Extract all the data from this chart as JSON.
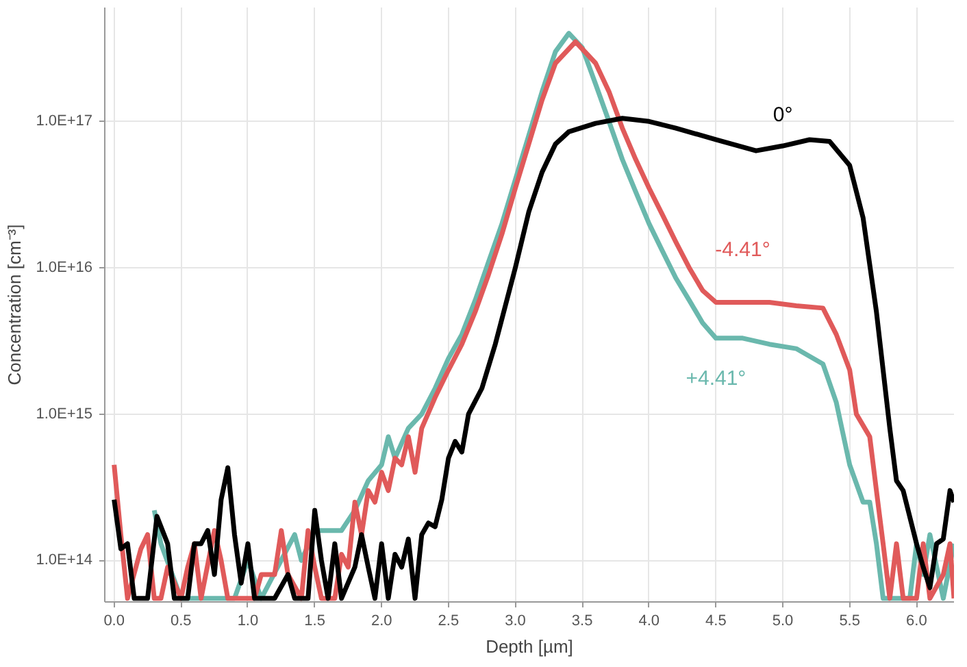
{
  "chart_data": {
    "type": "line",
    "xlabel": "Depth [µm]",
    "ylabel": "Concentration [cm⁻³]",
    "log": "y",
    "grid": true,
    "legend": false,
    "marker": "none",
    "line_style": "solid",
    "xlim": [
      -0.07,
      6.28
    ],
    "ylim": [
      52000000000000.0,
      6e+17
    ],
    "xticks": [
      {
        "value": 0,
        "label": "0.0"
      },
      0.5,
      {
        "value": 1,
        "label": "1.0"
      },
      1.5,
      {
        "value": 2,
        "label": "2.0"
      },
      2.5,
      {
        "value": 3,
        "label": "3.0"
      },
      3.5,
      {
        "value": 4,
        "label": "4.0"
      },
      4.5,
      {
        "value": 5,
        "label": "5.0"
      },
      5.5,
      {
        "value": 6,
        "label": "6.0"
      }
    ],
    "yticks": [
      {
        "value": 100000000000000.0,
        "label": "1.0E+14"
      },
      {
        "value": 1000000000000000.0,
        "label": "1.0E+15"
      },
      {
        "value": 1e+16,
        "label": "1.0E+16"
      },
      {
        "value": 1e+17,
        "label": "1.0E+17"
      }
    ],
    "series": [
      {
        "name": "+4.41°",
        "color": "#6ab8ad",
        "x": [
          0.3,
          0.35,
          0.5,
          0.9,
          1.0,
          1.1,
          1.35,
          1.4,
          1.5,
          1.6,
          1.7,
          1.8,
          1.9,
          2.0,
          2.05,
          2.1,
          2.2,
          2.3,
          2.4,
          2.5,
          2.6,
          2.7,
          2.8,
          2.9,
          3.0,
          3.1,
          3.2,
          3.3,
          3.4,
          3.5,
          3.6,
          3.7,
          3.8,
          3.9,
          4.0,
          4.1,
          4.2,
          4.3,
          4.4,
          4.5,
          4.7,
          4.9,
          5.1,
          5.3,
          5.4,
          5.5,
          5.6,
          5.65,
          5.7,
          5.75,
          5.95,
          6.0,
          6.05,
          6.1,
          6.2,
          6.28
        ],
        "values": [
          220000000000000.0,
          130000000000000.0,
          55000000000000.0,
          55000000000000.0,
          100000000000000.0,
          55000000000000.0,
          150000000000000.0,
          100000000000000.0,
          160000000000000.0,
          160000000000000.0,
          160000000000000.0,
          220000000000000.0,
          350000000000000.0,
          450000000000000.0,
          700000000000000.0,
          500000000000000.0,
          800000000000000.0,
          1000000000000000.0,
          1500000000000000.0,
          2400000000000000.0,
          3500000000000000.0,
          6000000000000000.0,
          1.1e+16,
          2e+16,
          4e+16,
          8e+16,
          1.6e+17,
          3e+17,
          4e+17,
          3.2e+17,
          1.8e+17,
          1e+17,
          5.5e+16,
          3.3e+16,
          2e+16,
          1.3e+16,
          8500000000000000.0,
          6000000000000000.0,
          4200000000000000.0,
          3300000000000000.0,
          3300000000000000.0,
          3000000000000000.0,
          2800000000000000.0,
          2200000000000000.0,
          1200000000000000.0,
          450000000000000.0,
          250000000000000.0,
          250000000000000.0,
          130000000000000.0,
          55000000000000.0,
          55000000000000.0,
          130000000000000.0,
          80000000000000.0,
          150000000000000.0,
          55000000000000.0,
          130000000000000.0
        ]
      },
      {
        "name": "-4.41°",
        "color": "#e05a5a",
        "x": [
          0.0,
          0.05,
          0.1,
          0.2,
          0.25,
          0.3,
          0.35,
          0.4,
          0.5,
          0.55,
          0.6,
          0.65,
          0.75,
          0.8,
          0.85,
          0.95,
          1.05,
          1.1,
          1.2,
          1.25,
          1.3,
          1.4,
          1.45,
          1.5,
          1.55,
          1.65,
          1.7,
          1.75,
          1.8,
          1.85,
          1.9,
          1.95,
          2.0,
          2.05,
          2.1,
          2.15,
          2.2,
          2.25,
          2.3,
          2.4,
          2.5,
          2.6,
          2.7,
          2.8,
          2.9,
          3.0,
          3.1,
          3.2,
          3.3,
          3.45,
          3.6,
          3.7,
          3.8,
          3.9,
          4.0,
          4.1,
          4.2,
          4.3,
          4.4,
          4.5,
          4.7,
          4.9,
          5.1,
          5.3,
          5.4,
          5.5,
          5.55,
          5.65,
          5.7,
          5.75,
          5.8,
          5.85,
          5.9,
          6.0,
          6.05,
          6.1,
          6.2,
          6.25,
          6.28
        ],
        "values": [
          450000000000000.0,
          150000000000000.0,
          55000000000000.0,
          120000000000000.0,
          150000000000000.0,
          55000000000000.0,
          55000000000000.0,
          90000000000000.0,
          55000000000000.0,
          90000000000000.0,
          130000000000000.0,
          55000000000000.0,
          160000000000000.0,
          100000000000000.0,
          55000000000000.0,
          55000000000000.0,
          55000000000000.0,
          80000000000000.0,
          80000000000000.0,
          160000000000000.0,
          80000000000000.0,
          55000000000000.0,
          160000000000000.0,
          90000000000000.0,
          55000000000000.0,
          55000000000000.0,
          110000000000000.0,
          90000000000000.0,
          250000000000000.0,
          150000000000000.0,
          300000000000000.0,
          250000000000000.0,
          400000000000000.0,
          300000000000000.0,
          500000000000000.0,
          450000000000000.0,
          700000000000000.0,
          400000000000000.0,
          800000000000000.0,
          1300000000000000.0,
          2000000000000000.0,
          3000000000000000.0,
          5000000000000000.0,
          9000000000000000.0,
          1.7e+16,
          3.5e+16,
          7e+16,
          1.4e+17,
          2.5e+17,
          3.5e+17,
          2.5e+17,
          1.6e+17,
          9e+16,
          5.5e+16,
          3.5e+16,
          2.3e+16,
          1.5e+16,
          1e+16,
          7000000000000000.0,
          5800000000000000.0,
          5800000000000000.0,
          5800000000000000.0,
          5500000000000000.0,
          5300000000000000.0,
          3500000000000000.0,
          2000000000000000.0,
          1000000000000000.0,
          700000000000000.0,
          300000000000000.0,
          130000000000000.0,
          55000000000000.0,
          130000000000000.0,
          55000000000000.0,
          55000000000000.0,
          130000000000000.0,
          55000000000000.0,
          80000000000000.0,
          130000000000000.0,
          55000000000000.0
        ]
      },
      {
        "name": "0°",
        "color": "#000000",
        "x": [
          0.0,
          0.05,
          0.1,
          0.15,
          0.25,
          0.32,
          0.4,
          0.45,
          0.55,
          0.6,
          0.65,
          0.7,
          0.75,
          0.8,
          0.85,
          0.9,
          0.95,
          1.0,
          1.05,
          1.2,
          1.3,
          1.35,
          1.45,
          1.5,
          1.55,
          1.6,
          1.65,
          1.7,
          1.8,
          1.85,
          1.9,
          1.95,
          2.0,
          2.05,
          2.1,
          2.15,
          2.2,
          2.25,
          2.3,
          2.35,
          2.4,
          2.45,
          2.5,
          2.55,
          2.6,
          2.65,
          2.75,
          2.85,
          3.0,
          3.1,
          3.2,
          3.3,
          3.4,
          3.6,
          3.8,
          4.0,
          4.2,
          4.5,
          4.8,
          5.0,
          5.2,
          5.35,
          5.5,
          5.6,
          5.7,
          5.8,
          5.85,
          5.9,
          6.0,
          6.05,
          6.1,
          6.15,
          6.2,
          6.25,
          6.28
        ],
        "values": [
          260000000000000.0,
          120000000000000.0,
          130000000000000.0,
          55000000000000.0,
          55000000000000.0,
          200000000000000.0,
          130000000000000.0,
          55000000000000.0,
          55000000000000.0,
          130000000000000.0,
          130000000000000.0,
          160000000000000.0,
          80000000000000.0,
          260000000000000.0,
          430000000000000.0,
          150000000000000.0,
          70000000000000.0,
          130000000000000.0,
          55000000000000.0,
          55000000000000.0,
          80000000000000.0,
          55000000000000.0,
          55000000000000.0,
          220000000000000.0,
          100000000000000.0,
          55000000000000.0,
          130000000000000.0,
          55000000000000.0,
          90000000000000.0,
          150000000000000.0,
          90000000000000.0,
          55000000000000.0,
          130000000000000.0,
          55000000000000.0,
          110000000000000.0,
          90000000000000.0,
          140000000000000.0,
          55000000000000.0,
          150000000000000.0,
          180000000000000.0,
          170000000000000.0,
          260000000000000.0,
          500000000000000.0,
          650000000000000.0,
          550000000000000.0,
          1000000000000000.0,
          1500000000000000.0,
          3000000000000000.0,
          1e+16,
          2.4e+16,
          4.5e+16,
          7e+16,
          8.5e+16,
          9.7e+16,
          1.05e+17,
          1e+17,
          9e+16,
          7.5e+16,
          6.3e+16,
          6.8e+16,
          7.5e+16,
          7.3e+16,
          5e+16,
          2.2e+16,
          5000000000000000.0,
          800000000000000.0,
          350000000000000.0,
          300000000000000.0,
          130000000000000.0,
          90000000000000.0,
          65000000000000.0,
          130000000000000.0,
          140000000000000.0,
          300000000000000.0,
          250000000000000.0
        ]
      }
    ]
  }
}
